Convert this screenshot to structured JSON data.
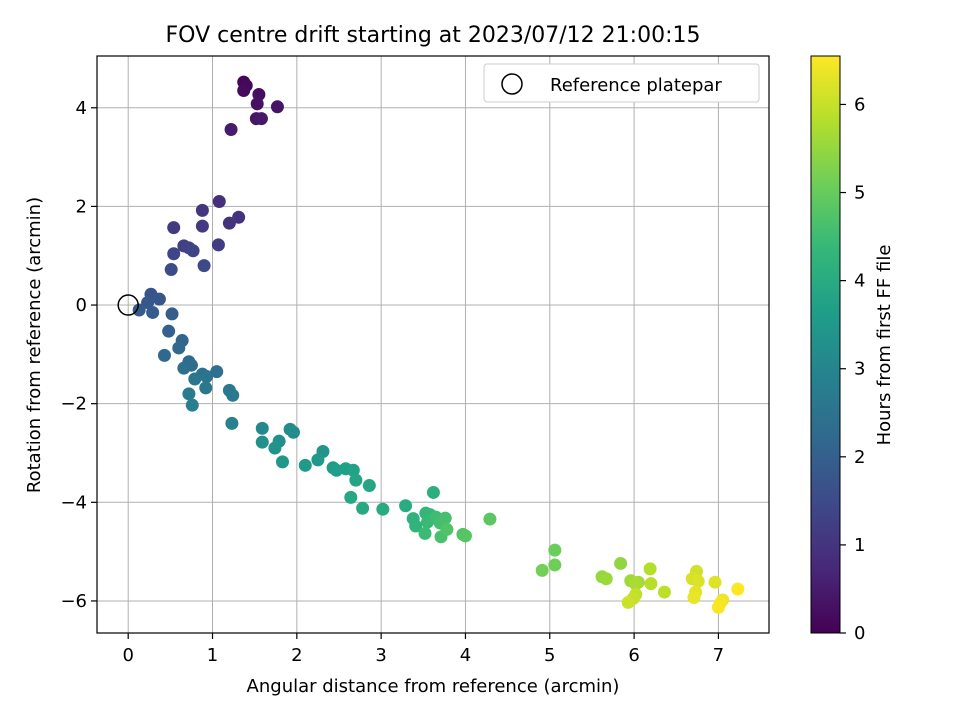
{
  "chart_data": {
    "type": "scatter",
    "title": "FOV centre drift starting at 2023/07/12 21:00:15",
    "xlabel": "Angular distance from reference (arcmin)",
    "ylabel": "Rotation from reference (arcmin)",
    "xlim": [
      -0.37,
      7.6
    ],
    "ylim": [
      -6.65,
      5.05
    ],
    "xticks": [
      0,
      1,
      2,
      3,
      4,
      5,
      6,
      7
    ],
    "xtick_labels": [
      "0",
      "1",
      "2",
      "3",
      "4",
      "5",
      "6",
      "7"
    ],
    "yticks": [
      -6,
      -4,
      -2,
      0,
      2,
      4
    ],
    "ytick_labels": [
      "−6",
      "−4",
      "−2",
      "0",
      "2",
      "4"
    ],
    "grid": true,
    "legend": {
      "placement": "top-right",
      "entries": [
        "Reference platepar"
      ]
    },
    "colorbar": {
      "label": "Hours from first FF file",
      "colormap": "viridis",
      "range": [
        0,
        6.55
      ],
      "ticks": [
        0,
        1,
        2,
        3,
        4,
        5,
        6
      ],
      "tick_labels": [
        "0",
        "1",
        "2",
        "3",
        "4",
        "5",
        "6"
      ]
    },
    "reference_point": {
      "x": 0,
      "y": 0
    },
    "points": [
      {
        "x": 1.37,
        "y": 4.52,
        "c": 0.1
      },
      {
        "x": 1.4,
        "y": 4.45,
        "c": 0.15
      },
      {
        "x": 1.37,
        "y": 4.35,
        "c": 0.2
      },
      {
        "x": 1.55,
        "y": 4.27,
        "c": 0.25
      },
      {
        "x": 1.53,
        "y": 4.08,
        "c": 0.3
      },
      {
        "x": 1.77,
        "y": 4.02,
        "c": 0.35
      },
      {
        "x": 1.52,
        "y": 3.78,
        "c": 0.4
      },
      {
        "x": 1.58,
        "y": 3.78,
        "c": 0.45
      },
      {
        "x": 1.22,
        "y": 3.56,
        "c": 0.5
      },
      {
        "x": 1.08,
        "y": 2.1,
        "c": 0.9
      },
      {
        "x": 1.31,
        "y": 1.78,
        "c": 0.95
      },
      {
        "x": 1.2,
        "y": 1.66,
        "c": 1.0
      },
      {
        "x": 0.88,
        "y": 1.92,
        "c": 1.05
      },
      {
        "x": 0.88,
        "y": 1.6,
        "c": 1.1
      },
      {
        "x": 0.54,
        "y": 1.57,
        "c": 1.15
      },
      {
        "x": 1.07,
        "y": 1.22,
        "c": 1.2
      },
      {
        "x": 0.66,
        "y": 1.2,
        "c": 1.25
      },
      {
        "x": 0.72,
        "y": 1.16,
        "c": 1.3
      },
      {
        "x": 0.77,
        "y": 1.1,
        "c": 1.35
      },
      {
        "x": 0.54,
        "y": 1.04,
        "c": 1.4
      },
      {
        "x": 0.9,
        "y": 0.8,
        "c": 1.45
      },
      {
        "x": 0.51,
        "y": 0.72,
        "c": 1.5
      },
      {
        "x": 0.27,
        "y": 0.22,
        "c": 1.7
      },
      {
        "x": 0.37,
        "y": 0.12,
        "c": 1.75
      },
      {
        "x": 0.23,
        "y": 0.05,
        "c": 1.8
      },
      {
        "x": 0.13,
        "y": -0.1,
        "c": 1.85
      },
      {
        "x": 0.29,
        "y": -0.15,
        "c": 1.9
      },
      {
        "x": 0.52,
        "y": -0.18,
        "c": 1.95
      },
      {
        "x": 0.48,
        "y": -0.53,
        "c": 2.05
      },
      {
        "x": 0.64,
        "y": -0.72,
        "c": 2.1
      },
      {
        "x": 0.6,
        "y": -0.87,
        "c": 2.15
      },
      {
        "x": 0.43,
        "y": -1.02,
        "c": 2.2
      },
      {
        "x": 0.72,
        "y": -1.15,
        "c": 2.25
      },
      {
        "x": 0.75,
        "y": -1.22,
        "c": 2.3
      },
      {
        "x": 0.66,
        "y": -1.28,
        "c": 2.35
      },
      {
        "x": 1.05,
        "y": -1.35,
        "c": 2.4
      },
      {
        "x": 0.88,
        "y": -1.4,
        "c": 2.45
      },
      {
        "x": 0.93,
        "y": -1.45,
        "c": 2.5
      },
      {
        "x": 0.79,
        "y": -1.5,
        "c": 2.55
      },
      {
        "x": 0.92,
        "y": -1.68,
        "c": 2.6
      },
      {
        "x": 1.2,
        "y": -1.73,
        "c": 2.65
      },
      {
        "x": 1.24,
        "y": -1.83,
        "c": 2.7
      },
      {
        "x": 0.72,
        "y": -1.8,
        "c": 2.75
      },
      {
        "x": 0.76,
        "y": -2.03,
        "c": 2.8
      },
      {
        "x": 1.23,
        "y": -2.4,
        "c": 2.9
      },
      {
        "x": 1.59,
        "y": -2.5,
        "c": 3.1
      },
      {
        "x": 1.92,
        "y": -2.52,
        "c": 3.15
      },
      {
        "x": 1.96,
        "y": -2.58,
        "c": 3.2
      },
      {
        "x": 1.79,
        "y": -2.76,
        "c": 3.25
      },
      {
        "x": 1.59,
        "y": -2.78,
        "c": 3.3
      },
      {
        "x": 1.74,
        "y": -2.9,
        "c": 3.35
      },
      {
        "x": 2.31,
        "y": -2.97,
        "c": 3.4
      },
      {
        "x": 1.83,
        "y": -3.18,
        "c": 3.45
      },
      {
        "x": 2.25,
        "y": -3.14,
        "c": 3.5
      },
      {
        "x": 2.1,
        "y": -3.25,
        "c": 3.55
      },
      {
        "x": 2.43,
        "y": -3.3,
        "c": 3.6
      },
      {
        "x": 2.47,
        "y": -3.35,
        "c": 3.65
      },
      {
        "x": 2.58,
        "y": -3.32,
        "c": 3.7
      },
      {
        "x": 2.67,
        "y": -3.35,
        "c": 3.75
      },
      {
        "x": 2.7,
        "y": -3.55,
        "c": 3.8
      },
      {
        "x": 2.86,
        "y": -3.66,
        "c": 3.85
      },
      {
        "x": 2.64,
        "y": -3.9,
        "c": 3.9
      },
      {
        "x": 2.78,
        "y": -4.12,
        "c": 3.95
      },
      {
        "x": 3.02,
        "y": -4.14,
        "c": 4.0
      },
      {
        "x": 3.29,
        "y": -4.07,
        "c": 4.05
      },
      {
        "x": 3.62,
        "y": -3.8,
        "c": 4.1
      },
      {
        "x": 3.38,
        "y": -4.33,
        "c": 4.2
      },
      {
        "x": 3.41,
        "y": -4.48,
        "c": 4.25
      },
      {
        "x": 3.53,
        "y": -4.22,
        "c": 4.3
      },
      {
        "x": 3.58,
        "y": -4.25,
        "c": 4.35
      },
      {
        "x": 3.55,
        "y": -4.4,
        "c": 4.4
      },
      {
        "x": 3.52,
        "y": -4.63,
        "c": 4.45
      },
      {
        "x": 3.65,
        "y": -4.3,
        "c": 4.5
      },
      {
        "x": 3.7,
        "y": -4.42,
        "c": 4.55
      },
      {
        "x": 3.76,
        "y": -4.32,
        "c": 4.6
      },
      {
        "x": 3.71,
        "y": -4.7,
        "c": 4.65
      },
      {
        "x": 3.78,
        "y": -4.55,
        "c": 4.7
      },
      {
        "x": 3.97,
        "y": -4.65,
        "c": 4.75
      },
      {
        "x": 4.0,
        "y": -4.68,
        "c": 4.8
      },
      {
        "x": 4.29,
        "y": -4.34,
        "c": 4.85
      },
      {
        "x": 5.06,
        "y": -4.97,
        "c": 5.05
      },
      {
        "x": 5.06,
        "y": -5.27,
        "c": 5.1
      },
      {
        "x": 4.91,
        "y": -5.38,
        "c": 5.15
      },
      {
        "x": 5.84,
        "y": -5.24,
        "c": 5.45
      },
      {
        "x": 5.62,
        "y": -5.51,
        "c": 5.5
      },
      {
        "x": 5.67,
        "y": -5.55,
        "c": 5.55
      },
      {
        "x": 5.96,
        "y": -5.59,
        "c": 5.6
      },
      {
        "x": 6.05,
        "y": -5.62,
        "c": 5.65
      },
      {
        "x": 6.02,
        "y": -5.66,
        "c": 5.7
      },
      {
        "x": 6.19,
        "y": -5.35,
        "c": 5.8
      },
      {
        "x": 6.2,
        "y": -5.65,
        "c": 5.85
      },
      {
        "x": 6.36,
        "y": -5.82,
        "c": 5.9
      },
      {
        "x": 6.02,
        "y": -5.87,
        "c": 5.95
      },
      {
        "x": 5.99,
        "y": -5.95,
        "c": 6.0
      },
      {
        "x": 5.93,
        "y": -6.03,
        "c": 6.05
      },
      {
        "x": 6.74,
        "y": -5.4,
        "c": 6.1
      },
      {
        "x": 6.69,
        "y": -5.55,
        "c": 6.15
      },
      {
        "x": 6.76,
        "y": -5.6,
        "c": 6.2
      },
      {
        "x": 6.96,
        "y": -5.62,
        "c": 6.25
      },
      {
        "x": 6.73,
        "y": -5.82,
        "c": 6.3
      },
      {
        "x": 6.71,
        "y": -5.93,
        "c": 6.35
      },
      {
        "x": 7.05,
        "y": -5.98,
        "c": 6.4
      },
      {
        "x": 7.02,
        "y": -6.05,
        "c": 6.45
      },
      {
        "x": 7.0,
        "y": -6.13,
        "c": 6.5
      },
      {
        "x": 7.23,
        "y": -5.76,
        "c": 6.55
      }
    ]
  }
}
